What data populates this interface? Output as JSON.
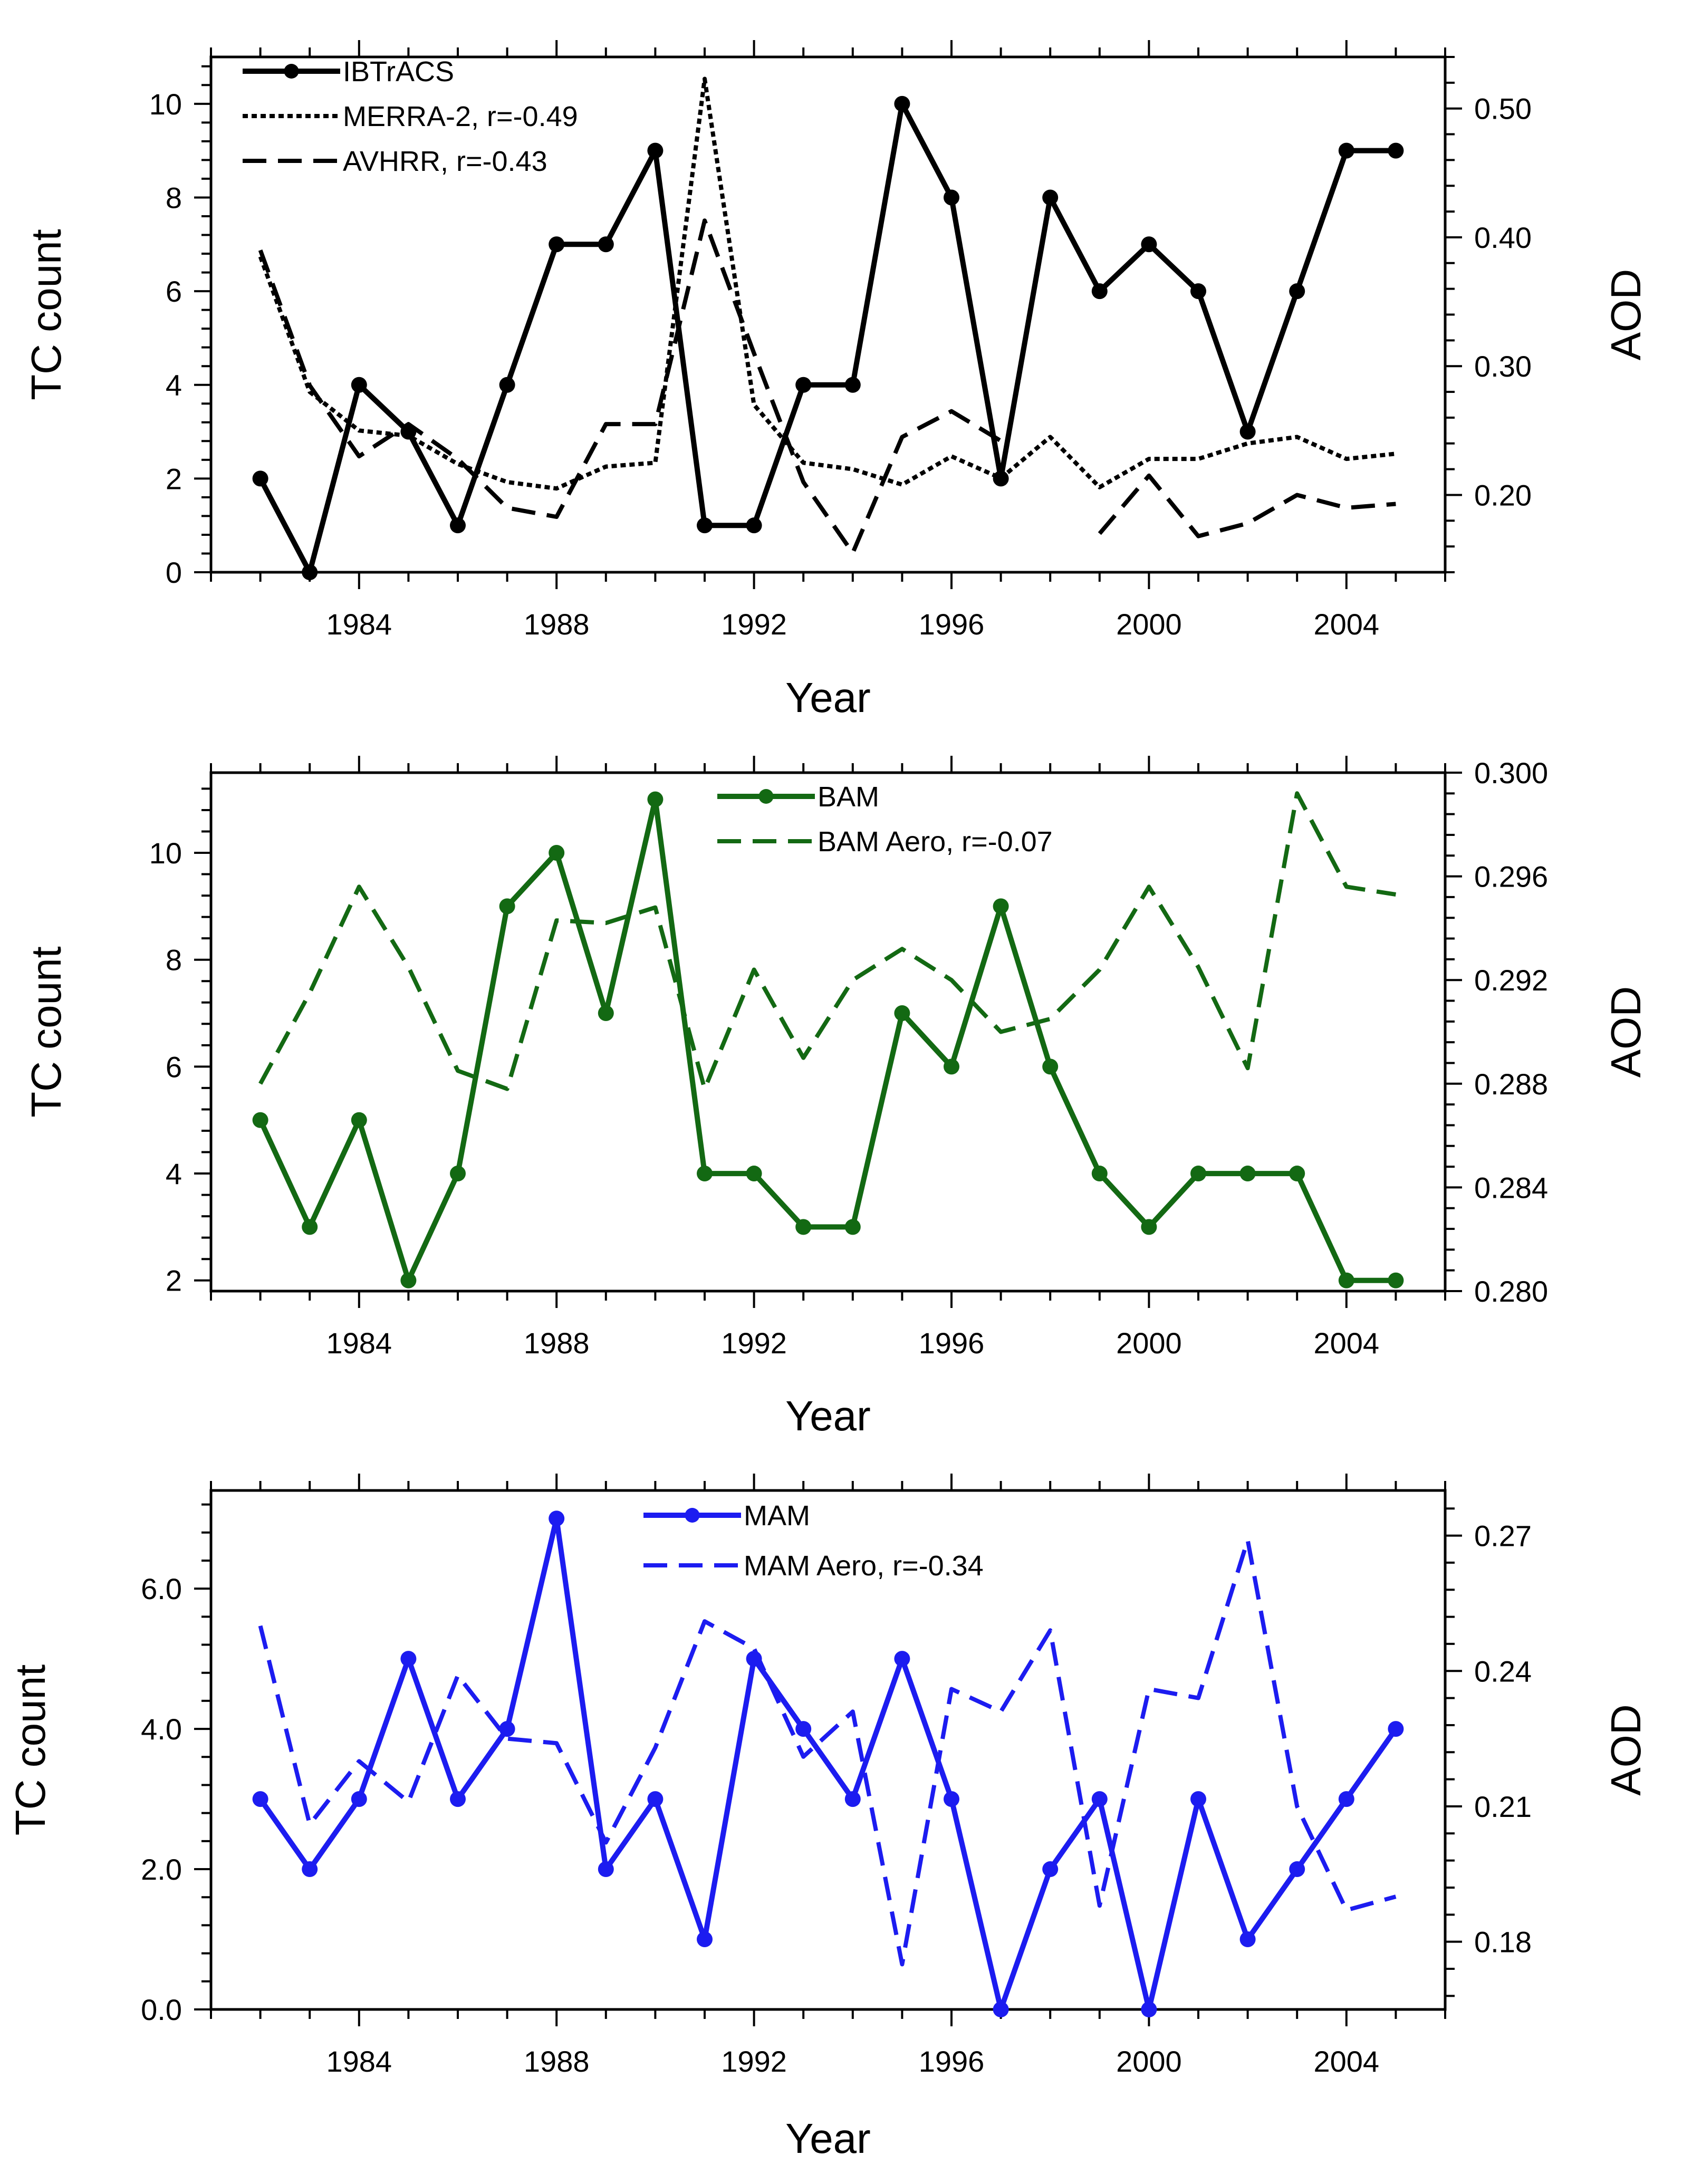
{
  "chart_data": [
    {
      "type": "line",
      "panel": "top",
      "xlabel": "Year",
      "ylabel": "TC count",
      "y2label": "AOD",
      "xlim": [
        1981,
        2006
      ],
      "ylim": [
        0,
        11
      ],
      "y2lim": [
        0.14,
        0.54
      ],
      "xticks": [
        1984,
        1988,
        1992,
        1996,
        2000,
        2004
      ],
      "yticks": [
        0,
        2,
        4,
        6,
        8,
        10
      ],
      "y2ticks": [
        0.2,
        0.3,
        0.4,
        0.5
      ],
      "y2tick_labels": [
        "0.20",
        "0.30",
        "0.40",
        "0.50"
      ],
      "legend_position": "top-left",
      "color": "#000000",
      "series": [
        {
          "name": "IBTrACS",
          "axis": "left",
          "style": "solid-markers",
          "x": [
            1982,
            1983,
            1984,
            1985,
            1986,
            1987,
            1988,
            1989,
            1990,
            1991,
            1992,
            1993,
            1994,
            1995,
            1996,
            1997,
            1998,
            1999,
            2000,
            2001,
            2002,
            2003,
            2004,
            2005
          ],
          "values": [
            2,
            0,
            4,
            3,
            1,
            4,
            7,
            7,
            9,
            1,
            1,
            4,
            4,
            10,
            8,
            2,
            8,
            6,
            7,
            6,
            3,
            6,
            9,
            9
          ]
        },
        {
          "name": "MERRA-2, r=-0.49",
          "axis": "right",
          "style": "dotted",
          "x": [
            1982,
            1983,
            1984,
            1985,
            1986,
            1987,
            1988,
            1989,
            1990,
            1991,
            1992,
            1993,
            1994,
            1995,
            1996,
            1997,
            1998,
            1999,
            2000,
            2001,
            2002,
            2003,
            2004,
            2005
          ],
          "values": [
            0.385,
            0.28,
            0.25,
            0.246,
            0.224,
            0.21,
            0.205,
            0.222,
            0.225,
            0.523,
            0.27,
            0.225,
            0.22,
            0.208,
            0.23,
            0.213,
            0.245,
            0.206,
            0.228,
            0.228,
            0.24,
            0.245,
            0.228,
            0.232
          ]
        },
        {
          "name": "AVHRR, r=-0.43",
          "axis": "right",
          "style": "dashed",
          "x": [
            1982,
            1983,
            1984,
            1985,
            1986,
            1987,
            1988,
            1989,
            1990,
            1991,
            1992,
            1993,
            1994,
            1995,
            1996,
            1997,
            1998,
            1999,
            2000,
            2001,
            2002,
            2003,
            2004,
            2005
          ],
          "values": [
            0.39,
            0.285,
            0.23,
            0.255,
            0.228,
            0.19,
            0.183,
            0.255,
            0.255,
            0.413,
            0.31,
            0.21,
            0.155,
            0.245,
            0.265,
            0.242,
            null,
            0.17,
            0.215,
            0.168,
            0.178,
            0.2,
            0.19,
            0.193
          ]
        }
      ]
    },
    {
      "type": "line",
      "panel": "middle",
      "xlabel": "Year",
      "ylabel": "TC count",
      "y2label": "AOD",
      "xlim": [
        1981,
        2006
      ],
      "ylim": [
        1.8,
        11.5
      ],
      "y2lim": [
        0.28,
        0.3
      ],
      "xticks": [
        1984,
        1988,
        1992,
        1996,
        2000,
        2004
      ],
      "yticks": [
        2,
        4,
        6,
        8,
        10
      ],
      "y2ticks": [
        0.28,
        0.284,
        0.288,
        0.292,
        0.296,
        0.3
      ],
      "y2tick_labels": [
        "0.280",
        "0.284",
        "0.288",
        "0.292",
        "0.296",
        "0.300"
      ],
      "legend_position": "top-center",
      "color": "#136913",
      "series": [
        {
          "name": "BAM",
          "axis": "left",
          "style": "solid-markers",
          "x": [
            1982,
            1983,
            1984,
            1985,
            1986,
            1987,
            1988,
            1989,
            1990,
            1991,
            1992,
            1993,
            1994,
            1995,
            1996,
            1997,
            1998,
            1999,
            2000,
            2001,
            2002,
            2003,
            2004,
            2005
          ],
          "values": [
            5,
            3,
            5,
            2,
            4,
            9,
            10,
            7,
            11,
            4,
            4,
            3,
            3,
            7,
            6,
            9,
            6,
            4,
            3,
            4,
            4,
            4,
            2,
            2
          ]
        },
        {
          "name": "BAM Aero, r=-0.07",
          "axis": "right",
          "style": "dashed",
          "x": [
            1982,
            1983,
            1984,
            1985,
            1986,
            1987,
            1988,
            1989,
            1990,
            1991,
            1992,
            1993,
            1994,
            1995,
            1996,
            1997,
            1998,
            1999,
            2000,
            2001,
            2002,
            2003,
            2004,
            2005
          ],
          "values": [
            0.288,
            0.2915,
            0.2956,
            0.2925,
            0.2885,
            0.2878,
            0.2943,
            0.2942,
            0.2948,
            0.2878,
            0.2924,
            0.289,
            0.292,
            0.2932,
            0.292,
            0.29,
            0.2905,
            0.2924,
            0.2956,
            0.2925,
            0.2886,
            0.2992,
            0.2956,
            0.2953
          ]
        }
      ]
    },
    {
      "type": "line",
      "panel": "bottom",
      "xlabel": "Year",
      "ylabel": "TC count",
      "y2label": "AOD",
      "xlim": [
        1981,
        2006
      ],
      "ylim": [
        0,
        7.4
      ],
      "y2lim": [
        0.165,
        0.28
      ],
      "xticks": [
        1984,
        1988,
        1992,
        1996,
        2000,
        2004
      ],
      "yticks": [
        0,
        2,
        4,
        6
      ],
      "ytick_labels": [
        "0.0",
        "2.0",
        "4.0",
        "6.0"
      ],
      "y2ticks": [
        0.18,
        0.21,
        0.24,
        0.27
      ],
      "y2tick_labels": [
        "0.18",
        "0.21",
        "0.24",
        "0.27"
      ],
      "legend_position": "top-center",
      "color": "#1c1cf0",
      "series": [
        {
          "name": "MAM",
          "axis": "left",
          "style": "solid-markers",
          "x": [
            1982,
            1983,
            1984,
            1985,
            1986,
            1987,
            1988,
            1989,
            1990,
            1991,
            1992,
            1993,
            1994,
            1995,
            1996,
            1997,
            1998,
            1999,
            2000,
            2001,
            2002,
            2003,
            2004,
            2005
          ],
          "values": [
            3,
            2,
            3,
            5,
            3,
            4,
            7,
            2,
            3,
            1,
            5,
            4,
            3,
            5,
            3,
            0,
            2,
            3,
            0,
            3,
            1,
            2,
            3,
            4
          ]
        },
        {
          "name": "MAM Aero, r=-0.34",
          "axis": "right",
          "style": "dashed",
          "x": [
            1982,
            1983,
            1984,
            1985,
            1986,
            1987,
            1988,
            1989,
            1990,
            1991,
            1992,
            1993,
            1994,
            1995,
            1996,
            1997,
            1998,
            1999,
            2000,
            2001,
            2002,
            2003,
            2004,
            2005
          ],
          "values": [
            0.25,
            0.206,
            0.22,
            0.211,
            0.239,
            0.225,
            0.224,
            0.202,
            0.223,
            0.251,
            0.245,
            0.221,
            0.231,
            0.175,
            0.236,
            0.231,
            0.249,
            0.188,
            0.236,
            0.234,
            0.269,
            0.21,
            0.187,
            0.19
          ]
        }
      ]
    }
  ]
}
